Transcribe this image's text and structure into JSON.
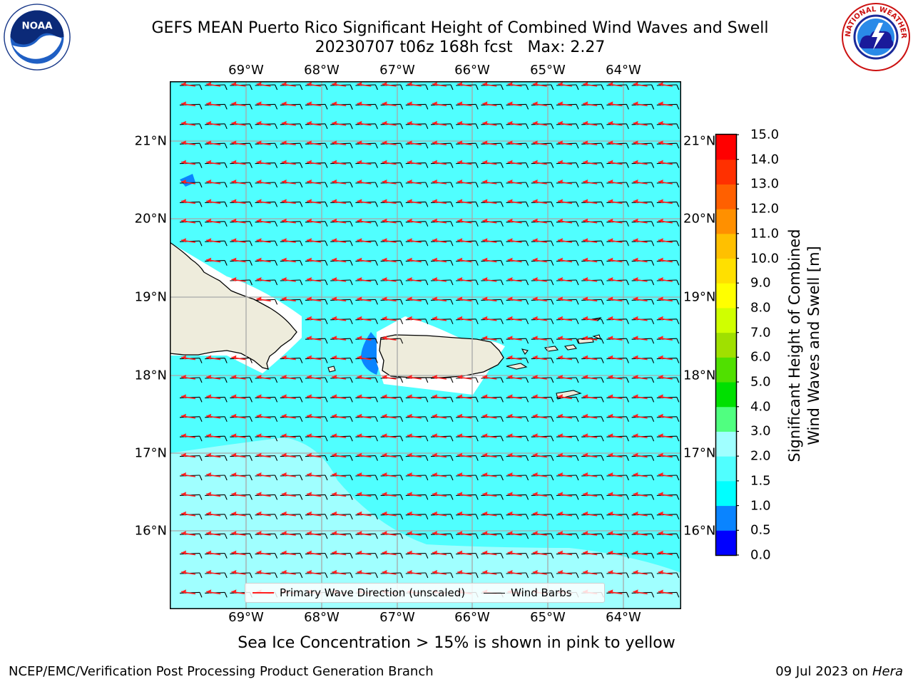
{
  "header": {
    "title_line1": "GEFS MEAN Puerto Rico Significant Height of Combined Wind Waves and Swell",
    "title_line2": "20230707 t06z 168h fcst   Max: 2.27"
  },
  "logos": {
    "left_icon": "noaa-logo",
    "left_text": "NOAA",
    "right_icon": "nws-logo",
    "right_text": "NATIONAL WEATHER SERVICE"
  },
  "map": {
    "lon_labels": [
      "69°W",
      "68°W",
      "67°W",
      "66°W",
      "65°W",
      "64°W"
    ],
    "lat_labels": [
      "21°N",
      "20°N",
      "19°N",
      "18°N",
      "17°N",
      "16°N"
    ],
    "land_color": "#eeecdc",
    "ocean_color": "#50ffff",
    "light_region_color": "#a0ffff",
    "blue_spot_color": "#0a84ff"
  },
  "colorbar": {
    "title_line1": "Significant Height of Combined",
    "title_line2": "Wind Waves and Swell [m]",
    "ticks": [
      "0.0",
      "0.5",
      "1.0",
      "1.5",
      "2.0",
      "3.0",
      "4.0",
      "5.0",
      "6.0",
      "7.0",
      "8.0",
      "9.0",
      "10.0",
      "11.0",
      "12.0",
      "13.0",
      "14.0",
      "15.0"
    ],
    "colors": [
      "#0000ff",
      "#0a84ff",
      "#00ffff",
      "#50ffff",
      "#a0ffff",
      "#50ff80",
      "#00e000",
      "#50e000",
      "#a0e000",
      "#d0ff00",
      "#ffff00",
      "#ffe000",
      "#ffc000",
      "#ff9000",
      "#ff6000",
      "#ff3000",
      "#ff0000"
    ]
  },
  "legend": {
    "wave_dir_label": "Primary Wave Direction (unscaled)",
    "wave_dir_color": "#ff2020",
    "wind_barbs_label": "Wind Barbs",
    "wind_barbs_color": "#000000"
  },
  "note": "Sea Ice Concentration > 15% is shown in pink to yellow",
  "footer": {
    "left": "NCEP/EMC/Verification Post Processing Product Generation Branch",
    "right_date": "09 Jul 2023 on ",
    "right_host": "Hera"
  }
}
